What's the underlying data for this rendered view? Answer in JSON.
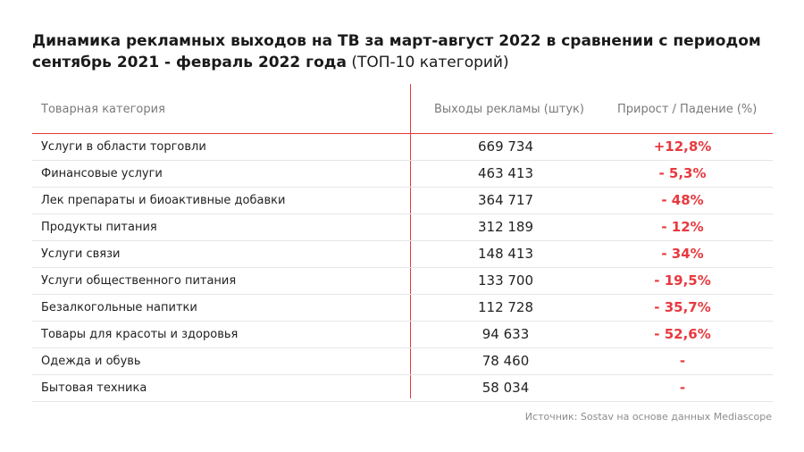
{
  "title": {
    "bold": "Динамика рекламных выходов на ТВ за март-август 2022 в сравнении с периодом сентябрь 2021 - февраль 2022 года",
    "normal": "(ТОП-10 категорий)"
  },
  "chart_data": {
    "type": "table",
    "columns": [
      "Товарная категория",
      "Выходы рекламы (штук)",
      "Прирост / Падение (%)"
    ],
    "rows": [
      {
        "category": "Услуги в области торговли",
        "ads": "669 734",
        "change": "+12,8%"
      },
      {
        "category": "Финансовые услуги",
        "ads": "463 413",
        "change": "- 5,3%"
      },
      {
        "category": "Лек препараты и биоактивные добавки",
        "ads": "364 717",
        "change": "- 48%"
      },
      {
        "category": "Продукты питания",
        "ads": "312 189",
        "change": "- 12%"
      },
      {
        "category": "Услуги связи",
        "ads": "148 413",
        "change": "- 34%"
      },
      {
        "category": "Услуги общественного питания",
        "ads": "133 700",
        "change": "- 19,5%"
      },
      {
        "category": "Безалкогольные напитки",
        "ads": "112 728",
        "change": "- 35,7%"
      },
      {
        "category": "Товары для красоты и здоровья",
        "ads": "94 633",
        "change": "- 52,6%"
      },
      {
        "category": "Одежда и обувь",
        "ads": "78 460",
        "change": "-"
      },
      {
        "category": "Бытовая техника",
        "ads": "58 034",
        "change": "-"
      }
    ]
  },
  "source": "Источник: Sostav на основе данных Mediascope",
  "colors": {
    "accent": "#e8393f",
    "text": "#222222",
    "muted": "#7a7a7a"
  }
}
